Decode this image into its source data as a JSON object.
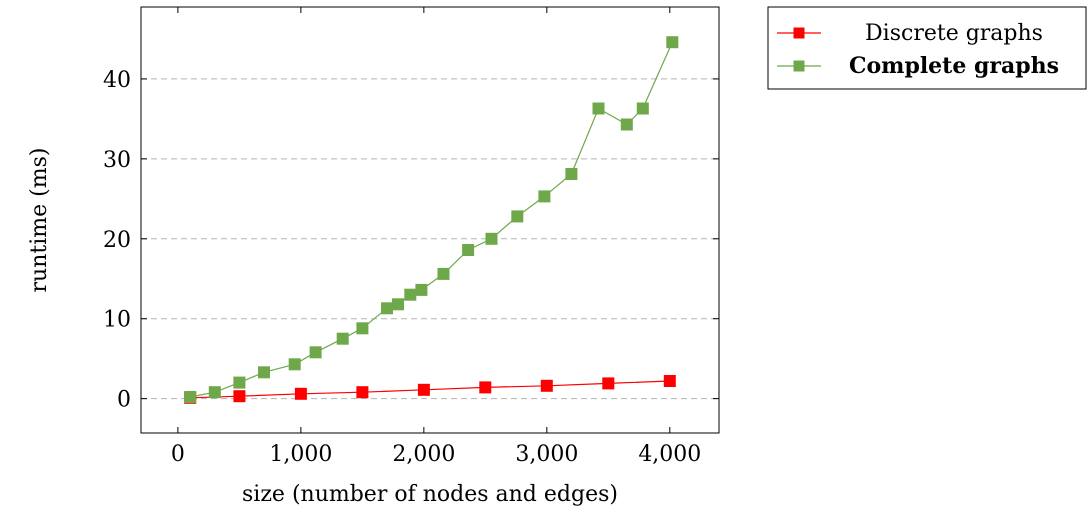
{
  "chart_data": {
    "type": "line",
    "title": "",
    "xlabel": "size (number of nodes and edges)",
    "ylabel": "runtime (ms)",
    "xlim": [
      -300,
      4400
    ],
    "ylim": [
      -4.3,
      49
    ],
    "x_ticks": [
      0,
      1000,
      2000,
      3000,
      4000
    ],
    "x_tick_labels": [
      "0",
      "1,000",
      "2,000",
      "3,000",
      "4,000"
    ],
    "y_ticks": [
      0,
      10,
      20,
      30,
      40
    ],
    "y_tick_labels": [
      "0",
      "10",
      "20",
      "30",
      "40"
    ],
    "grid": "horizontal dashed",
    "legend_position": "outside-right-top",
    "series": [
      {
        "name": "Discrete graphs",
        "color": "#ff0000",
        "marker": "square",
        "x": [
          100,
          500,
          1000,
          1500,
          2000,
          2500,
          3000,
          3500,
          4000
        ],
        "y": [
          0.1,
          0.3,
          0.6,
          0.8,
          1.1,
          1.4,
          1.6,
          1.9,
          2.2
        ]
      },
      {
        "name": "Complete graphs",
        "color": "#6fa84a",
        "marker": "square",
        "x": [
          100,
          300,
          500,
          700,
          950,
          1120,
          1340,
          1500,
          1700,
          1790,
          1890,
          1980,
          2160,
          2360,
          2550,
          2760,
          2980,
          3200,
          3420,
          3650,
          3780,
          4020
        ],
        "y": [
          0.2,
          0.8,
          2.0,
          3.3,
          4.3,
          5.8,
          7.5,
          8.8,
          11.3,
          11.8,
          13.0,
          13.6,
          15.6,
          18.6,
          20.0,
          22.8,
          25.3,
          28.1,
          36.3,
          34.3,
          36.3,
          44.6
        ]
      }
    ]
  }
}
